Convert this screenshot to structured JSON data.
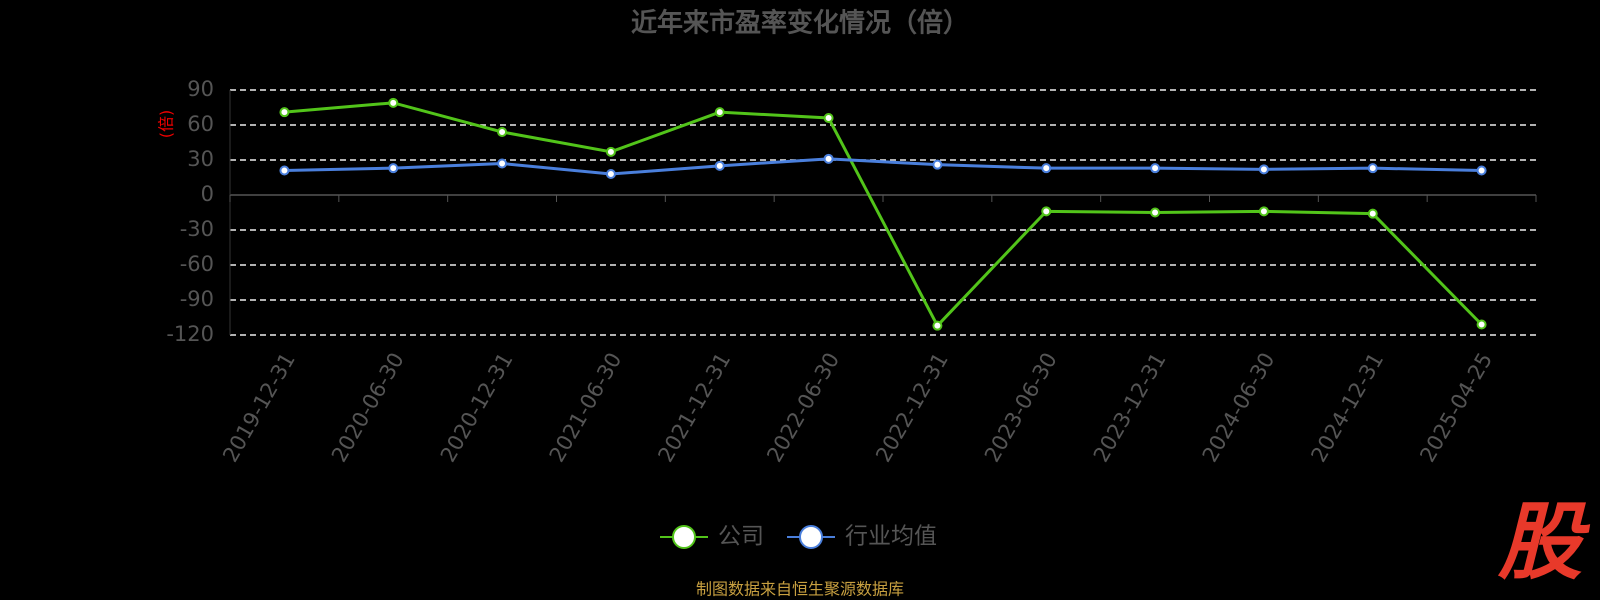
{
  "chart_data": {
    "type": "line",
    "title": "近年来市盈率变化情况（倍）",
    "y_label": "(倍)",
    "categories": [
      "2019-12-31",
      "2020-06-30",
      "2020-12-31",
      "2021-06-30",
      "2021-12-31",
      "2022-06-30",
      "2022-12-31",
      "2023-06-30",
      "2023-12-31",
      "2024-06-30",
      "2024-12-31",
      "2025-04-25"
    ],
    "series": [
      {
        "name": "公司",
        "color": "#52c41a",
        "values": [
          71,
          79,
          54,
          37,
          71,
          66,
          -112,
          -14,
          -15,
          -14,
          -16,
          -111
        ]
      },
      {
        "name": "行业均值",
        "color": "#4a7fdc",
        "values": [
          21,
          23,
          27,
          18,
          25,
          31,
          26,
          23,
          23,
          22,
          23,
          21
        ]
      }
    ],
    "ylim": [
      -120,
      90
    ],
    "yticks": [
      -120,
      -90,
      -60,
      -30,
      0,
      30,
      60,
      90
    ],
    "grid": true,
    "source": "制图数据来自恒生聚源数据库",
    "logo": "股"
  }
}
